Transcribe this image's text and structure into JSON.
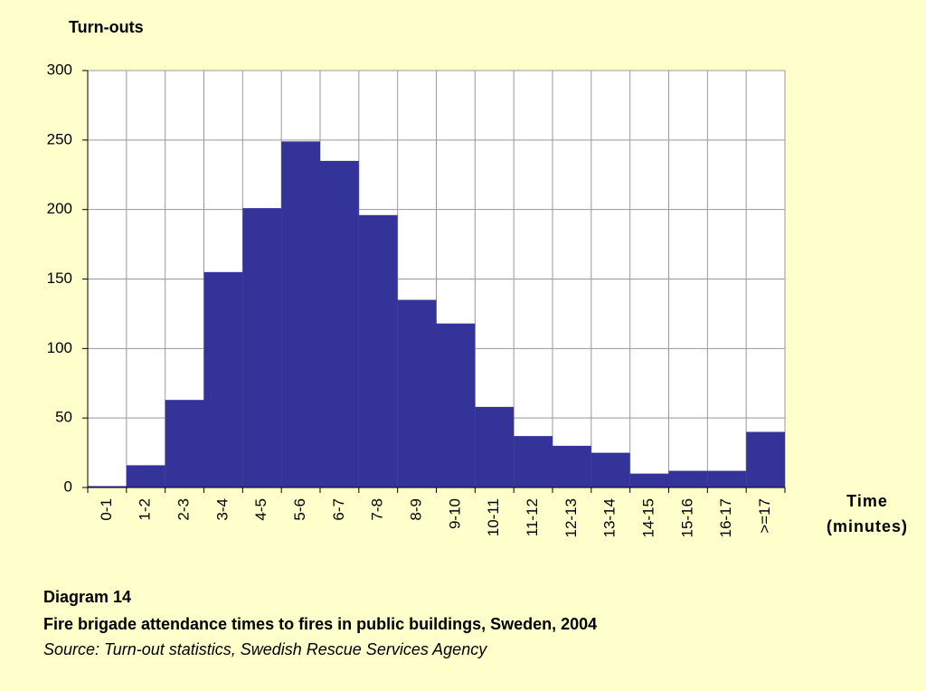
{
  "chart_data": {
    "type": "bar",
    "title": "Fire brigade attendance times to fires in public buildings, Sweden, 2004",
    "diagram_label": "Diagram 14",
    "source": "Source: Turn-out statistics, Swedish Rescue Services Agency",
    "ylabel": "Turn-outs",
    "xlabel": "Time (minutes)",
    "categories": [
      "0-1",
      "1-2",
      "2-3",
      "3-4",
      "4-5",
      "5-6",
      "6-7",
      "7-8",
      "8-9",
      "9-10",
      "10-11",
      "11-12",
      "12-13",
      "13-14",
      "14-15",
      "15-16",
      "16-17",
      ">=17"
    ],
    "values": [
      1,
      16,
      63,
      155,
      201,
      249,
      235,
      196,
      135,
      118,
      58,
      37,
      30,
      25,
      10,
      12,
      12,
      40
    ],
    "color": "#333399",
    "ylim": [
      0,
      300
    ],
    "yticks": [
      0,
      50,
      100,
      150,
      200,
      250,
      300
    ],
    "grid": true
  }
}
